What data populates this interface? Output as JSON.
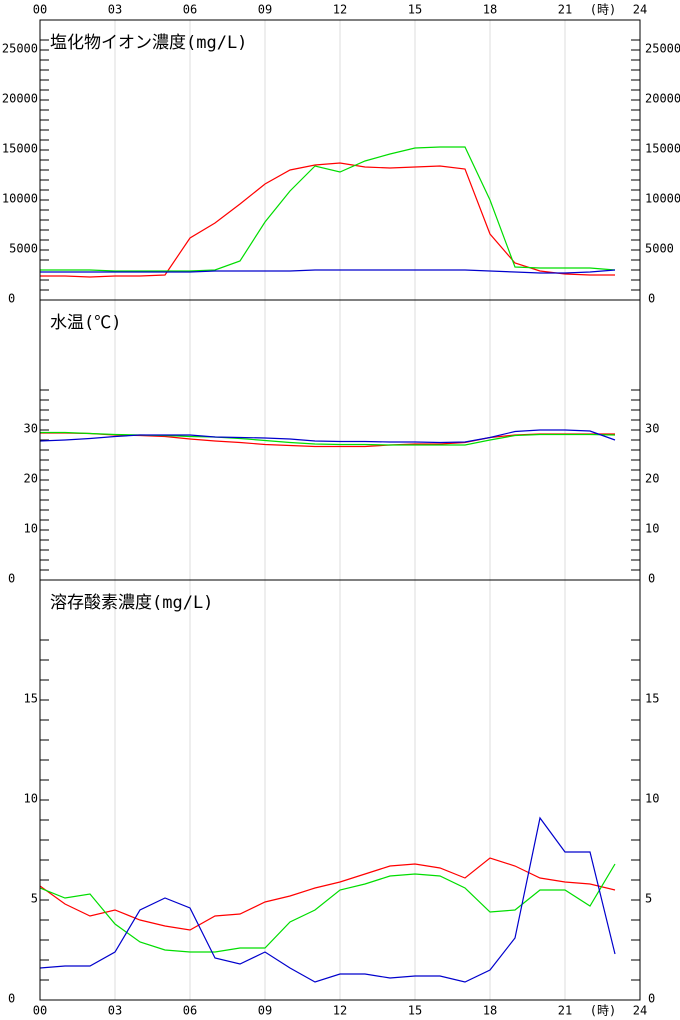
{
  "chart_data": [
    {
      "type": "line",
      "title": "塩化物イオン濃度(mg/L)",
      "xlabel": "(時)",
      "x": [
        0,
        1,
        2,
        3,
        4,
        5,
        6,
        7,
        8,
        9,
        10,
        11,
        12,
        13,
        14,
        15,
        16,
        17,
        18,
        19,
        20,
        21,
        22,
        23
      ],
      "xlim": [
        0,
        24
      ],
      "xticks": [
        {
          "value": 0,
          "label": "00"
        },
        {
          "value": 3,
          "label": "03"
        },
        {
          "value": 6,
          "label": "06"
        },
        {
          "value": 9,
          "label": "09"
        },
        12,
        15,
        18,
        21,
        24
      ],
      "ylim": [
        0,
        28000
      ],
      "yticks": [
        0,
        5000,
        10000,
        15000,
        20000,
        25000
      ],
      "minor_yticks": [
        0,
        1000,
        2000,
        3000,
        4000,
        5000,
        6000,
        7000,
        8000,
        9000,
        10000,
        11000,
        12000,
        13000,
        14000,
        15000,
        16000,
        17000,
        18000,
        19000,
        20000,
        21000,
        22000,
        23000,
        24000,
        25000,
        26000
      ],
      "series": [
        {
          "color": "#ff0000",
          "values": [
            2400,
            2400,
            2300,
            2400,
            2400,
            2500,
            6200,
            7700,
            9600,
            11600,
            13000,
            13500,
            13700,
            13300,
            13200,
            13300,
            13400,
            13100,
            6600,
            3700,
            2900,
            2600,
            2500,
            2500
          ]
        },
        {
          "color": "#00dd00",
          "values": [
            3000,
            3000,
            3000,
            2900,
            2900,
            2900,
            2900,
            3000,
            3900,
            7800,
            10900,
            13400,
            12800,
            13900,
            14600,
            15200,
            15300,
            15300,
            10000,
            3300,
            3200,
            3200,
            3200,
            3000
          ]
        },
        {
          "color": "#0000cc",
          "values": [
            2800,
            2800,
            2800,
            2800,
            2800,
            2800,
            2800,
            2900,
            2900,
            2900,
            2900,
            3000,
            3000,
            3000,
            3000,
            3000,
            3000,
            3000,
            2900,
            2800,
            2700,
            2700,
            2800,
            3000
          ]
        }
      ]
    },
    {
      "type": "line",
      "title": "水温(℃)",
      "x": [
        0,
        1,
        2,
        3,
        4,
        5,
        6,
        7,
        8,
        9,
        10,
        11,
        12,
        13,
        14,
        15,
        16,
        17,
        18,
        19,
        20,
        21,
        22,
        23
      ],
      "xlim": [
        0,
        24
      ],
      "xticks": [
        3,
        6,
        9,
        12,
        15,
        18,
        21
      ],
      "ylim": [
        0,
        56
      ],
      "yticks": [
        0,
        10,
        20,
        30
      ],
      "minor_yticks": [
        0,
        2,
        4,
        6,
        8,
        10,
        12,
        14,
        16,
        18,
        20,
        22,
        24,
        26,
        28,
        30,
        32,
        34,
        36,
        38
      ],
      "series": [
        {
          "color": "#ff0000",
          "values": [
            29.4,
            29.4,
            29.3,
            29.0,
            28.9,
            28.7,
            28.2,
            27.8,
            27.5,
            27.1,
            26.9,
            26.7,
            26.7,
            26.7,
            27.0,
            27.2,
            27.2,
            27.5,
            28.5,
            29.0,
            29.2,
            29.2,
            29.2,
            29.2
          ]
        },
        {
          "color": "#00dd00",
          "values": [
            29.5,
            29.5,
            29.3,
            29.1,
            29.0,
            28.9,
            28.7,
            28.6,
            28.3,
            27.9,
            27.5,
            27.2,
            27.1,
            27.1,
            27.0,
            27.0,
            27.0,
            27.0,
            28.0,
            28.9,
            29.1,
            29.1,
            29.1,
            29.0
          ]
        },
        {
          "color": "#0000cc",
          "values": [
            27.8,
            28.0,
            28.3,
            28.7,
            29.0,
            29.0,
            29.0,
            28.6,
            28.5,
            28.4,
            28.2,
            27.8,
            27.7,
            27.7,
            27.6,
            27.6,
            27.5,
            27.6,
            28.5,
            29.7,
            30.0,
            30.0,
            29.8,
            28.0
          ]
        }
      ]
    },
    {
      "type": "line",
      "title": "溶存酸素濃度(mg/L)",
      "xlabel": "(時)",
      "x": [
        0,
        1,
        2,
        3,
        4,
        5,
        6,
        7,
        8,
        9,
        10,
        11,
        12,
        13,
        14,
        15,
        16,
        17,
        18,
        19,
        20,
        21,
        22,
        23
      ],
      "xlim": [
        0,
        24
      ],
      "xticks": [
        {
          "value": 0,
          "label": "00"
        },
        {
          "value": 3,
          "label": "03"
        },
        {
          "value": 6,
          "label": "06"
        },
        {
          "value": 9,
          "label": "09"
        },
        12,
        15,
        18,
        21,
        24
      ],
      "ylim": [
        0,
        21
      ],
      "yticks": [
        0,
        5,
        10,
        15
      ],
      "minor_yticks": [
        0,
        1,
        2,
        3,
        4,
        5,
        6,
        7,
        8,
        9,
        10,
        11,
        12,
        13,
        14,
        15,
        16,
        17,
        18
      ],
      "series": [
        {
          "color": "#ff0000",
          "values": [
            5.7,
            4.8,
            4.2,
            4.5,
            4.0,
            3.7,
            3.5,
            4.2,
            4.3,
            4.9,
            5.2,
            5.6,
            5.9,
            6.3,
            6.7,
            6.8,
            6.6,
            6.1,
            7.1,
            6.7,
            6.1,
            5.9,
            5.8,
            5.5
          ]
        },
        {
          "color": "#00dd00",
          "values": [
            5.6,
            5.1,
            5.3,
            3.8,
            2.9,
            2.5,
            2.4,
            2.4,
            2.6,
            2.6,
            3.9,
            4.5,
            5.5,
            5.8,
            6.2,
            6.3,
            6.2,
            5.6,
            4.4,
            4.5,
            5.5,
            5.5,
            4.7,
            6.8
          ]
        },
        {
          "color": "#0000cc",
          "values": [
            1.6,
            1.7,
            1.7,
            2.4,
            4.5,
            5.1,
            4.6,
            2.1,
            1.8,
            2.4,
            1.6,
            0.9,
            1.3,
            1.3,
            1.1,
            1.2,
            1.2,
            0.9,
            1.5,
            3.1,
            9.1,
            7.4,
            7.4,
            2.3
          ]
        }
      ]
    }
  ]
}
